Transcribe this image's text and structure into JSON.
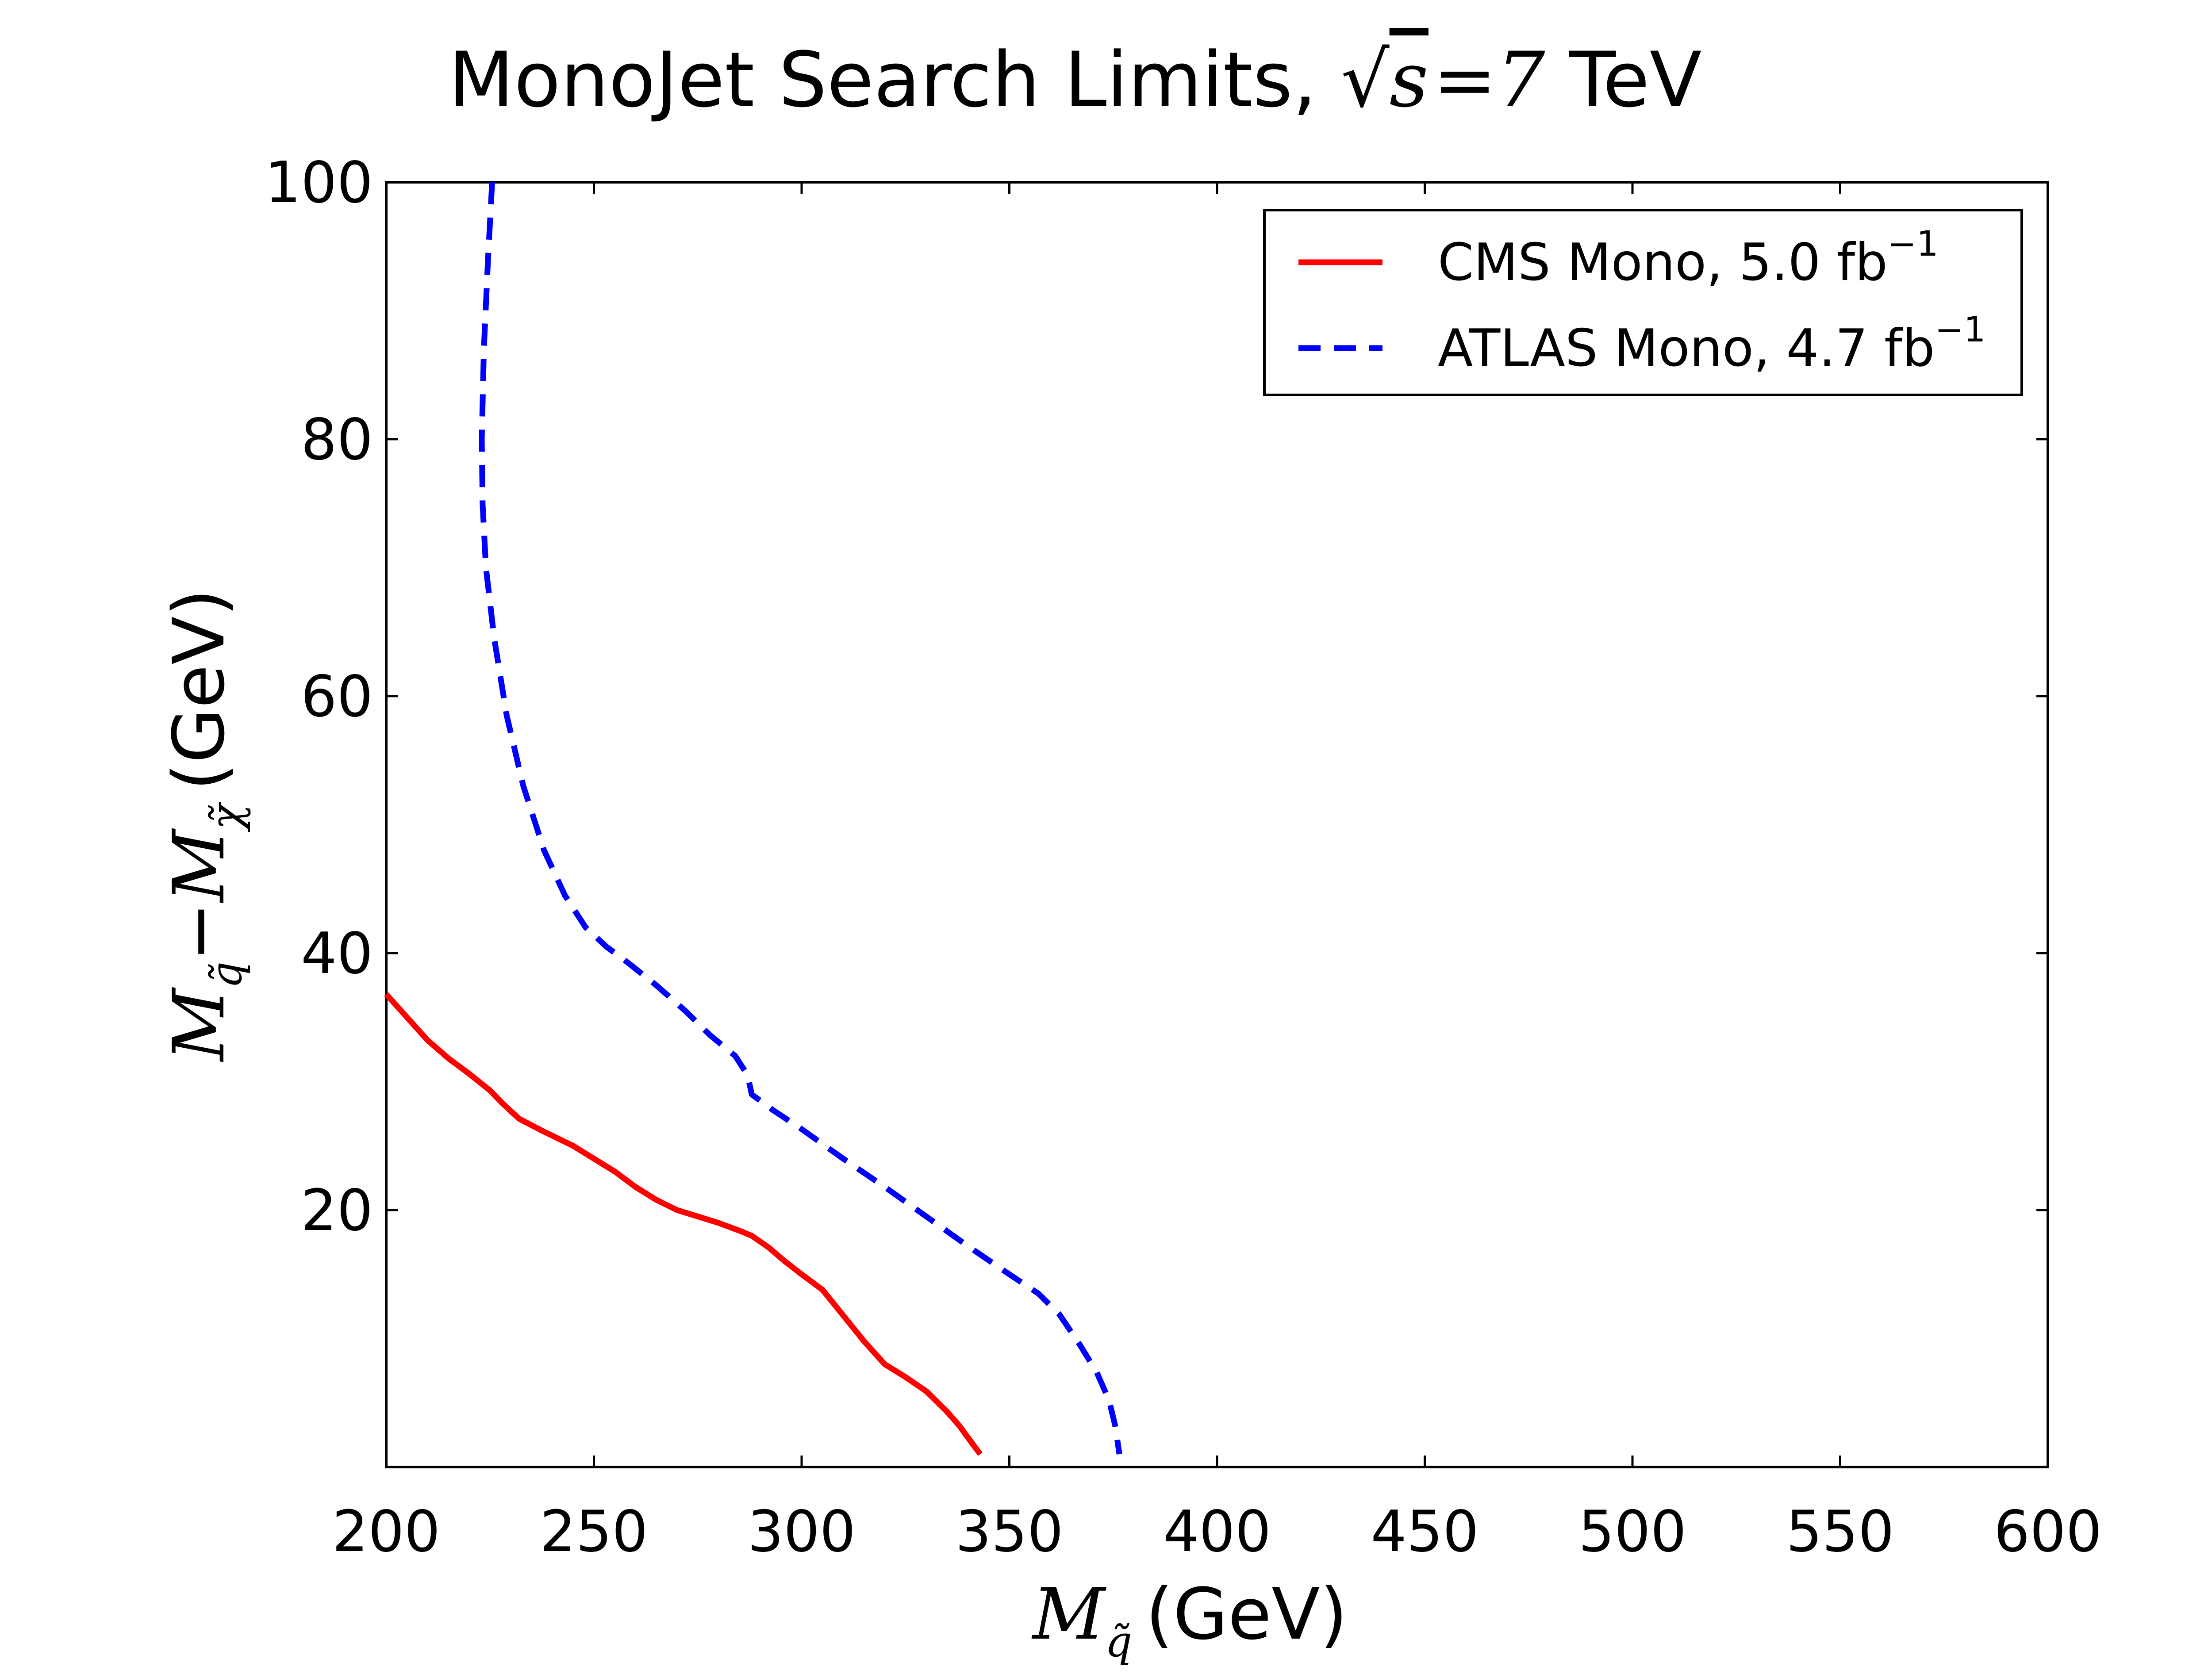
{
  "chart_data": {
    "type": "line",
    "title": "MonoJet Search Limits, √s =7 TeV",
    "title_parts": {
      "prefix": "MonoJet Search Limits, ",
      "sqrt_var": "s",
      "equals": "=",
      "energy": "7",
      "unit": " TeV"
    },
    "xlabel": "M q̃ (GeV)",
    "xlabel_parts": {
      "symbol": "M",
      "subscript": "q̃",
      "unit": "(GeV)"
    },
    "ylabel": "M q̃ − M χ̃ (GeV)",
    "ylabel_parts": {
      "symbol1": "M",
      "sub1": "q̃",
      "minus": "−",
      "symbol2": "M",
      "sub2": "χ̃",
      "unit": "(GeV)"
    },
    "xlim": [
      200,
      600
    ],
    "ylim": [
      0,
      100
    ],
    "x_ticks": [
      200,
      250,
      300,
      350,
      400,
      450,
      500,
      550,
      600
    ],
    "y_ticks": [
      20,
      40,
      60,
      80,
      100
    ],
    "grid": false,
    "legend_position": "top-right",
    "series": [
      {
        "name": "CMS Mono, 5.0 fb",
        "name_superscript": "−1",
        "color": "#ff0000",
        "style": "solid",
        "x": [
          200,
          205,
          210,
          215,
          220,
          225,
          228,
          232,
          238,
          245,
          250,
          255,
          260,
          265,
          270,
          275,
          280,
          285,
          288,
          292,
          296,
          300,
          305,
          310,
          315,
          320,
          325,
          330,
          335,
          338,
          340,
          343
        ],
        "y": [
          36.8,
          35.0,
          33.2,
          31.8,
          30.6,
          29.3,
          28.3,
          27.1,
          26.1,
          25.0,
          24.0,
          23.0,
          21.8,
          20.8,
          20.0,
          19.5,
          19.0,
          18.4,
          18.0,
          17.1,
          16.0,
          15.0,
          13.8,
          11.8,
          9.8,
          8.0,
          7.0,
          5.9,
          4.3,
          3.2,
          2.3,
          1.0
        ]
      },
      {
        "name": "ATLAS Mono, 4.7 fb",
        "name_superscript": "−1",
        "color": "#0000ff",
        "style": "dashed",
        "x": [
          225.5,
          224.5,
          223.5,
          223.0,
          223.2,
          224.0,
          226.0,
          229.0,
          233.0,
          238.0,
          243.0,
          248.0,
          253.0,
          258.0,
          265.0,
          272.0,
          278.0,
          284.0,
          287.0,
          288.0,
          293.0,
          300.0,
          310.0,
          320.0,
          330.0,
          340.0,
          350.0,
          357.0,
          362.0,
          367.0,
          371.0,
          374.0,
          375.5,
          376.5
        ],
        "y": [
          100,
          94,
          87,
          80,
          75,
          70,
          64.5,
          58.5,
          53.0,
          48.0,
          44.5,
          42.0,
          40.5,
          39.3,
          37.5,
          35.5,
          33.6,
          32.0,
          30.5,
          29.0,
          27.8,
          26.3,
          24.0,
          21.8,
          19.5,
          17.2,
          15.0,
          13.5,
          11.9,
          9.5,
          7.4,
          5.2,
          3.2,
          1.0
        ]
      }
    ]
  }
}
